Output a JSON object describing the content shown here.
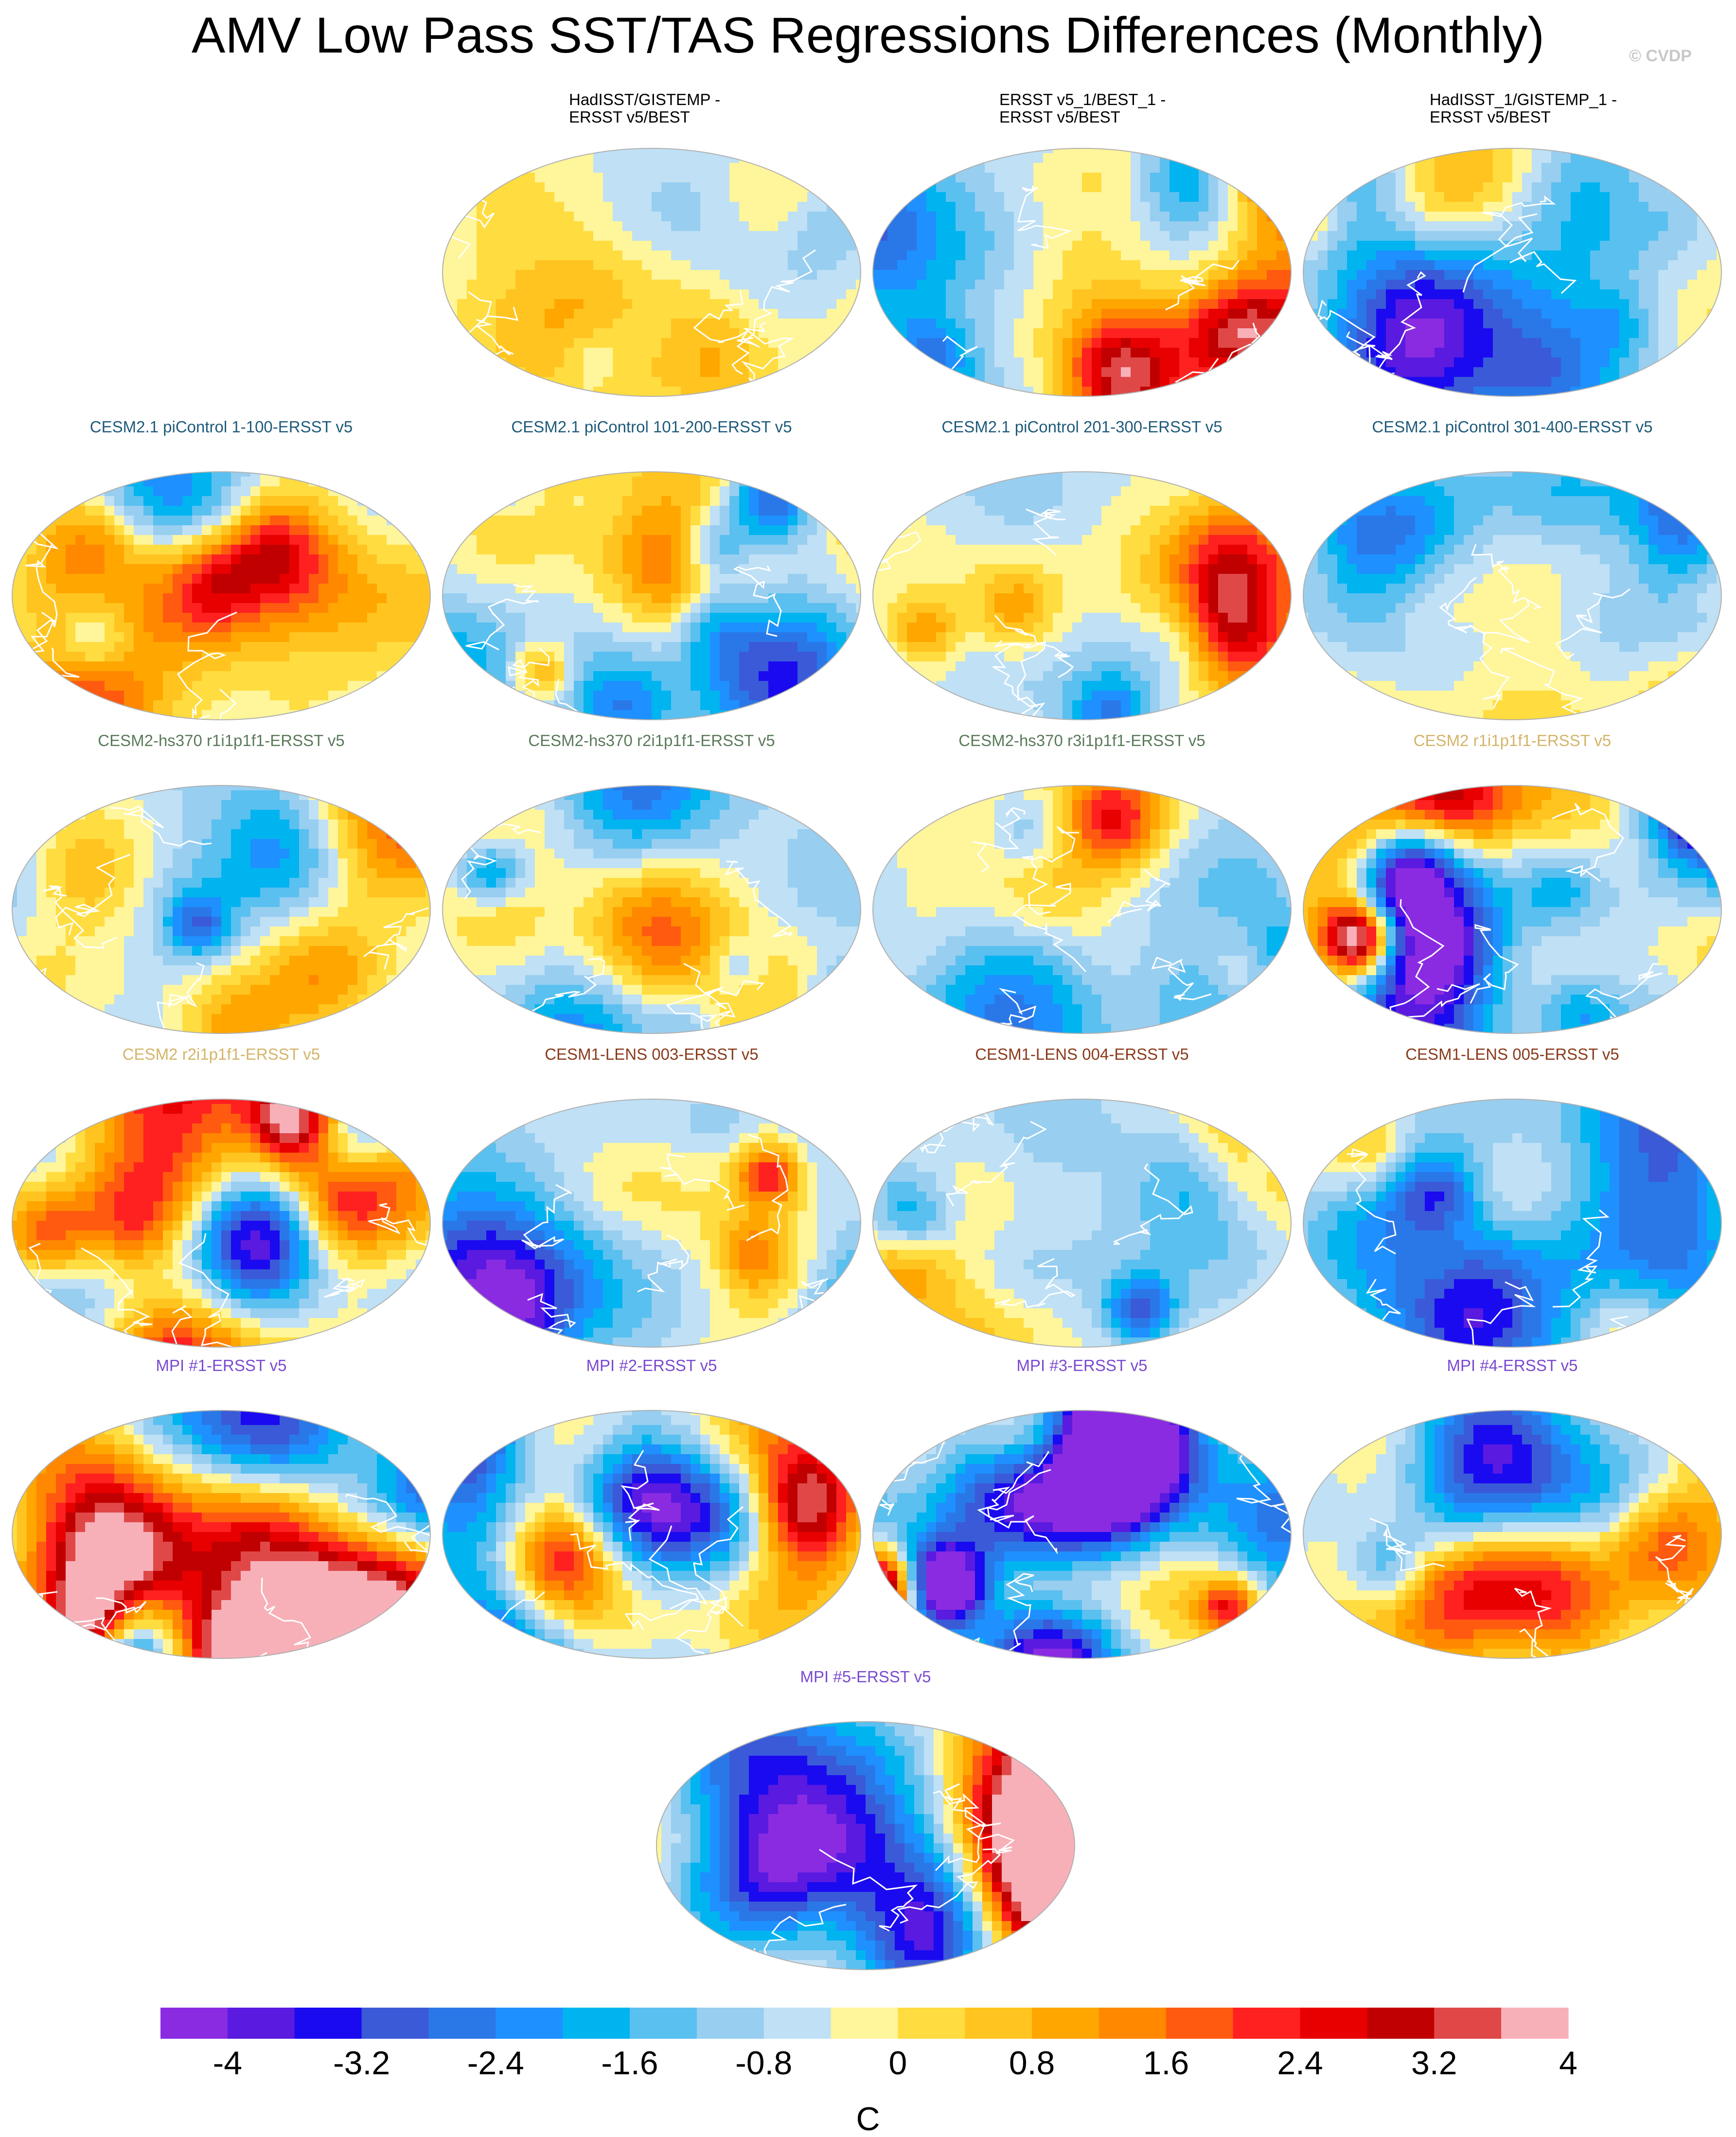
{
  "title": "AMV Low Pass SST/TAS Regressions Differences (Monthly)",
  "credit": "© CVDP",
  "colors": {
    "title_obs": "#000000",
    "title_cesm21_pic": "#1f5a7a",
    "title_cesm2_hs370": "#5a7a5a",
    "title_cesm2": "#d4b46a",
    "title_cesm1_lens": "#8a3a1a",
    "title_mpi": "#7a4ad0"
  },
  "panels": [
    {
      "title": "HadISST/GISTEMP -\nERSST v5/BEST",
      "color": "#000000",
      "seed": 11,
      "amp": 0.45,
      "bias": 0.15
    },
    {
      "title": "ERSST v5_1/BEST_1 -\nERSST v5/BEST",
      "color": "#000000",
      "seed": 12,
      "amp": 1.0,
      "bias": -0.1
    },
    {
      "title": "HadISST_1/GISTEMP_1 -\nERSST v5/BEST",
      "color": "#000000",
      "seed": 13,
      "amp": 0.9,
      "bias": 0.1
    },
    {
      "title": "CESM2.1 piControl 1-100-ERSST v5",
      "color": "#1f5a7a",
      "seed": 21,
      "amp": 0.8,
      "bias": -0.2
    },
    {
      "title": "CESM2.1 piControl 101-200-ERSST v5",
      "color": "#1f5a7a",
      "seed": 22,
      "amp": 0.85,
      "bias": 0.25
    },
    {
      "title": "CESM2.1 piControl 201-300-ERSST v5",
      "color": "#1f5a7a",
      "seed": 23,
      "amp": 0.8,
      "bias": -0.15
    },
    {
      "title": "CESM2.1 piControl 301-400-ERSST v5",
      "color": "#1f5a7a",
      "seed": 24,
      "amp": 0.85,
      "bias": 0.1
    },
    {
      "title": "CESM2-hs370 r1i1p1f1-ERSST v5",
      "color": "#5a7a5a",
      "seed": 31,
      "amp": 0.7,
      "bias": -0.35
    },
    {
      "title": "CESM2-hs370 r2i1p1f1-ERSST v5",
      "color": "#5a7a5a",
      "seed": 32,
      "amp": 0.75,
      "bias": -0.3
    },
    {
      "title": "CESM2-hs370 r3i1p1f1-ERSST v5",
      "color": "#5a7a5a",
      "seed": 33,
      "amp": 0.75,
      "bias": -0.3
    },
    {
      "title": "CESM2 r1i1p1f1-ERSST v5",
      "color": "#d4b46a",
      "seed": 34,
      "amp": 1.6,
      "bias": 0.1
    },
    {
      "title": "CESM2 r2i1p1f1-ERSST v5",
      "color": "#d4b46a",
      "seed": 41,
      "amp": 1.4,
      "bias": 0.0
    },
    {
      "title": "CESM1-LENS 003-ERSST v5",
      "color": "#8a3a1a",
      "seed": 42,
      "amp": 0.9,
      "bias": -0.05
    },
    {
      "title": "CESM1-LENS 004-ERSST v5",
      "color": "#8a3a1a",
      "seed": 43,
      "amp": 0.85,
      "bias": -0.2
    },
    {
      "title": "CESM1-LENS 005-ERSST v5",
      "color": "#8a3a1a",
      "seed": 44,
      "amp": 0.8,
      "bias": -0.05
    },
    {
      "title": "MPI #1-ERSST v5",
      "color": "#7a4ad0",
      "seed": 51,
      "amp": 1.3,
      "bias": 0.05
    },
    {
      "title": "MPI #2-ERSST v5",
      "color": "#7a4ad0",
      "seed": 52,
      "amp": 1.3,
      "bias": -0.05
    },
    {
      "title": "MPI #3-ERSST v5",
      "color": "#7a4ad0",
      "seed": 53,
      "amp": 2.2,
      "bias": -0.2
    },
    {
      "title": "MPI #4-ERSST v5",
      "color": "#7a4ad0",
      "seed": 54,
      "amp": 1.1,
      "bias": 0.1
    },
    {
      "title": "MPI #5-ERSST v5",
      "color": "#7a4ad0",
      "seed": 61,
      "amp": 1.1,
      "bias": 0.05
    }
  ],
  "chart_data": {
    "type": "heatmap",
    "projection": "global map",
    "colorbar": {
      "levels": [
        -4,
        -3.6,
        -3.2,
        -2.8,
        -2.4,
        -2.0,
        -1.6,
        -1.2,
        -0.8,
        -0.4,
        0,
        0.4,
        0.8,
        1.2,
        1.6,
        2.0,
        2.4,
        2.8,
        3.2,
        3.6,
        4
      ],
      "tick_labels": [
        "-4",
        "-3.2",
        "-2.4",
        "-1.6",
        "-0.8",
        "0",
        "0.8",
        "1.6",
        "2.4",
        "3.2",
        "4"
      ],
      "unit": "C",
      "colors": [
        "#8a2be2",
        "#5a1ae0",
        "#1a0af0",
        "#3a5ad8",
        "#2a78e8",
        "#1e90ff",
        "#00b4f0",
        "#5ac0f0",
        "#98cef0",
        "#bfe0f5",
        "#fff59a",
        "#ffdc40",
        "#ffc420",
        "#ffa600",
        "#ff8800",
        "#ff5a10",
        "#ff2020",
        "#e80000",
        "#c00000",
        "#e04848",
        "#f8b0b8"
      ]
    }
  }
}
